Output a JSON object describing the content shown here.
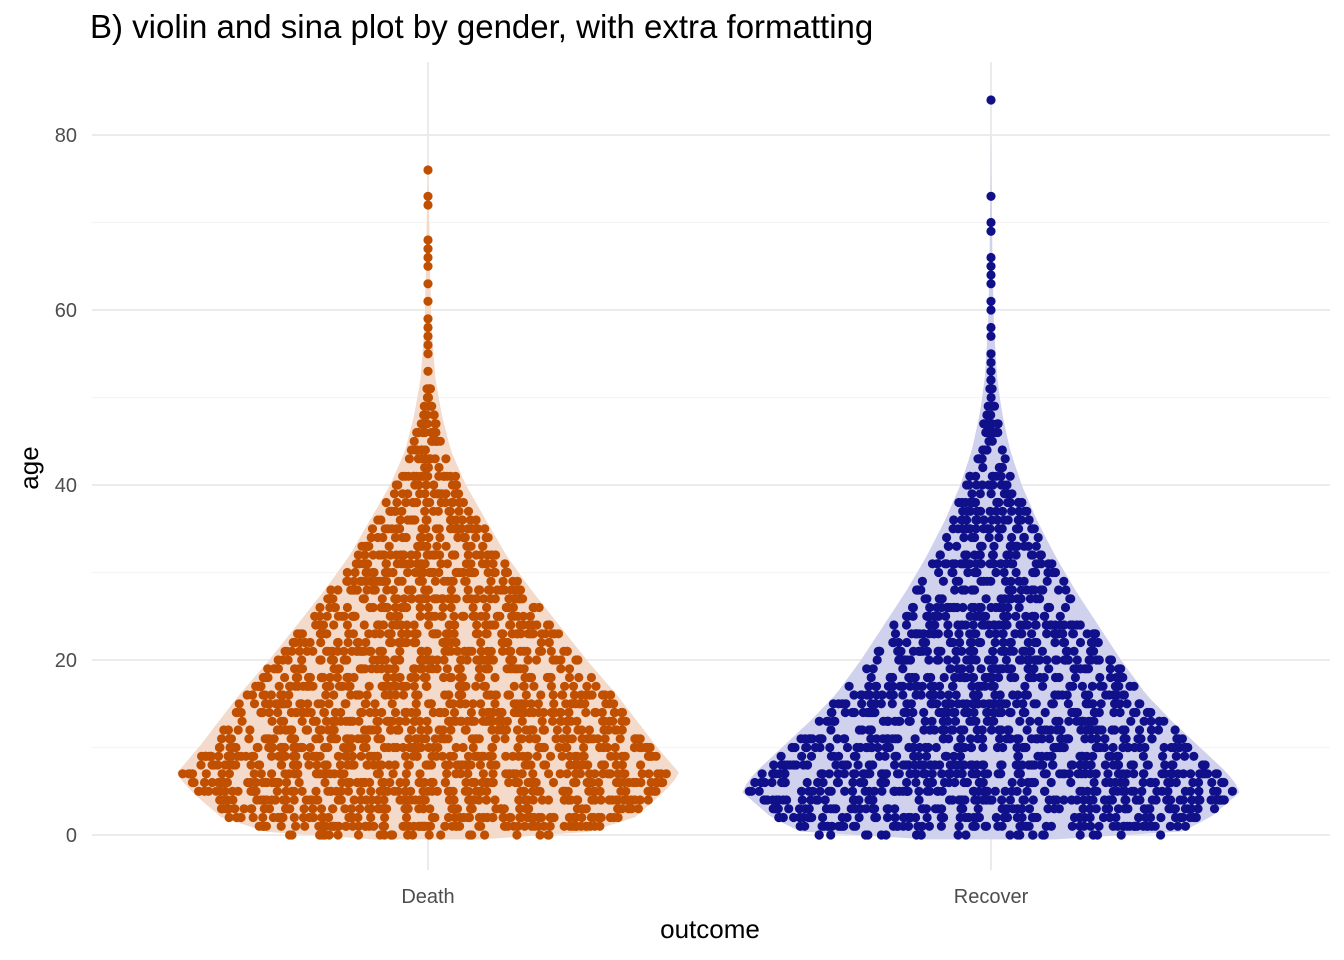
{
  "chart_data": {
    "type": "violin-sina",
    "title": "B) violin and sina plot by gender, with extra formatting",
    "xlabel": "outcome",
    "ylabel": "age",
    "categories": [
      "Death",
      "Recover"
    ],
    "ylim": [
      -4,
      88
    ],
    "yticks": [
      0,
      20,
      40,
      60,
      80
    ],
    "grid": true,
    "legend": "none",
    "colors": {
      "Death": "#C05000",
      "Recover": "#10108A",
      "Death_violin_fill": "#F4DACB",
      "Recover_violin_fill": "#D0D1EC",
      "grid_major": "#EBEBEB",
      "grid_minor": "#F4F4F4"
    },
    "series": [
      {
        "category": "Death",
        "n_points": 1950,
        "max_age": 76,
        "outliers_top": [
          76,
          73,
          72,
          68,
          67,
          66,
          65,
          63,
          61,
          59,
          58,
          57,
          56,
          55,
          53
        ],
        "density_profile": [
          {
            "age": 0,
            "density": 0.6
          },
          {
            "age": 2,
            "density": 0.82
          },
          {
            "age": 5,
            "density": 0.94
          },
          {
            "age": 7,
            "density": 1.0
          },
          {
            "age": 10,
            "density": 0.91
          },
          {
            "age": 13,
            "density": 0.83
          },
          {
            "age": 16,
            "density": 0.75
          },
          {
            "age": 20,
            "density": 0.63
          },
          {
            "age": 24,
            "density": 0.52
          },
          {
            "age": 28,
            "density": 0.41
          },
          {
            "age": 32,
            "density": 0.31
          },
          {
            "age": 36,
            "density": 0.23
          },
          {
            "age": 40,
            "density": 0.15
          },
          {
            "age": 44,
            "density": 0.09
          },
          {
            "age": 48,
            "density": 0.055
          },
          {
            "age": 52,
            "density": 0.03
          },
          {
            "age": 58,
            "density": 0.014
          },
          {
            "age": 65,
            "density": 0.008
          },
          {
            "age": 72,
            "density": 0.004
          },
          {
            "age": 76,
            "density": 0.0
          }
        ]
      },
      {
        "category": "Recover",
        "n_points": 1600,
        "max_age": 84,
        "outliers_top": [
          84,
          73,
          70,
          69,
          66,
          65,
          64,
          63,
          61,
          60,
          58,
          57,
          55,
          54,
          53,
          52
        ],
        "density_profile": [
          {
            "age": 0,
            "density": 0.72
          },
          {
            "age": 2,
            "density": 0.86
          },
          {
            "age": 5,
            "density": 0.98
          },
          {
            "age": 7,
            "density": 0.93
          },
          {
            "age": 10,
            "density": 0.82
          },
          {
            "age": 13,
            "density": 0.71
          },
          {
            "age": 16,
            "density": 0.61
          },
          {
            "age": 20,
            "density": 0.51
          },
          {
            "age": 24,
            "density": 0.42
          },
          {
            "age": 28,
            "density": 0.33
          },
          {
            "age": 32,
            "density": 0.25
          },
          {
            "age": 36,
            "density": 0.18
          },
          {
            "age": 40,
            "density": 0.12
          },
          {
            "age": 44,
            "density": 0.075
          },
          {
            "age": 48,
            "density": 0.045
          },
          {
            "age": 52,
            "density": 0.025
          },
          {
            "age": 58,
            "density": 0.012
          },
          {
            "age": 65,
            "density": 0.006
          },
          {
            "age": 72,
            "density": 0.003
          },
          {
            "age": 80,
            "density": 0.0
          }
        ]
      }
    ]
  }
}
